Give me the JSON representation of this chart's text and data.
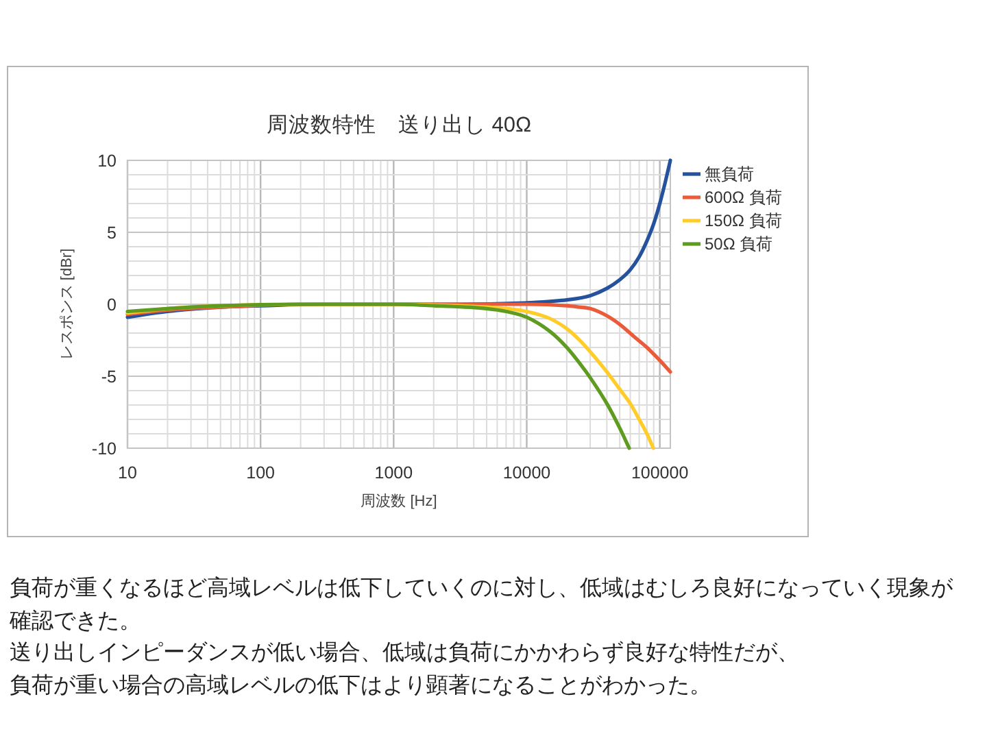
{
  "chart_data": {
    "type": "line",
    "title": "周波数特性　送り出し 40Ω",
    "xlabel": "周波数 [Hz]",
    "ylabel": "レスポンス [dBr]",
    "log": "x",
    "xlim": [
      10,
      120000
    ],
    "xticks": [
      10,
      100,
      1000,
      10000,
      100000
    ],
    "ylim": [
      -10,
      10
    ],
    "yticks": [
      -10,
      -5,
      0,
      5,
      10
    ],
    "grid": true,
    "legend": "top right",
    "series": [
      {
        "name": "無負荷",
        "color": "#25529c",
        "x": [
          10,
          20,
          50,
          100,
          300,
          1000,
          3000,
          10000,
          15000,
          20000,
          30000,
          40000,
          50000,
          60000,
          70000,
          80000,
          90000,
          100000,
          110000,
          120000
        ],
        "values": [
          -0.9,
          -0.5,
          -0.2,
          -0.1,
          0,
          0,
          0,
          0.1,
          0.2,
          0.3,
          0.6,
          1.1,
          1.7,
          2.4,
          3.3,
          4.4,
          5.6,
          7.0,
          8.5,
          10
        ]
      },
      {
        "name": "600Ω 負荷",
        "color": "#ea5b3a",
        "x": [
          10,
          20,
          50,
          200,
          1000,
          5000,
          10000,
          20000,
          25000,
          30000,
          40000,
          50000,
          65000,
          80000,
          100000,
          120000
        ],
        "values": [
          -0.7,
          -0.4,
          -0.2,
          0,
          0,
          0,
          0,
          -0.1,
          -0.2,
          -0.3,
          -0.8,
          -1.4,
          -2.3,
          -3.0,
          -3.9,
          -4.7
        ]
      },
      {
        "name": "150Ω 負荷",
        "color": "#ffcc29",
        "x": [
          10,
          20,
          50,
          200,
          1000,
          3000,
          5000,
          7000,
          10000,
          15000,
          20000,
          25000,
          30000,
          40000,
          50000,
          60000,
          70000,
          80000,
          89500
        ],
        "values": [
          -0.6,
          -0.3,
          -0.1,
          0,
          0,
          -0.1,
          -0.2,
          -0.3,
          -0.5,
          -1.0,
          -1.7,
          -2.5,
          -3.3,
          -4.7,
          -5.9,
          -6.9,
          -8.0,
          -9.0,
          -10
        ]
      },
      {
        "name": "50Ω 負荷",
        "color": "#5e9b1f",
        "x": [
          10,
          20,
          50,
          200,
          1000,
          2000,
          5000,
          7000,
          10000,
          15000,
          20000,
          25000,
          30000,
          40000,
          50000,
          58900
        ],
        "values": [
          -0.5,
          -0.3,
          -0.1,
          0,
          0,
          -0.1,
          -0.3,
          -0.5,
          -0.9,
          -1.9,
          -3.0,
          -4.1,
          -5.1,
          -6.9,
          -8.6,
          -10
        ]
      }
    ],
    "annotations": [
      "負荷が重くなるほど高域レベルは低下していくのに対し、低域はむしろ良好になっていく現象が確認できた。",
      "送り出しインピーダンスが低い場合、低域は負荷にかかわらず良好な特性だが、",
      "負荷が重い場合の高域レベルの低下はより顕著になることがわかった。"
    ]
  }
}
